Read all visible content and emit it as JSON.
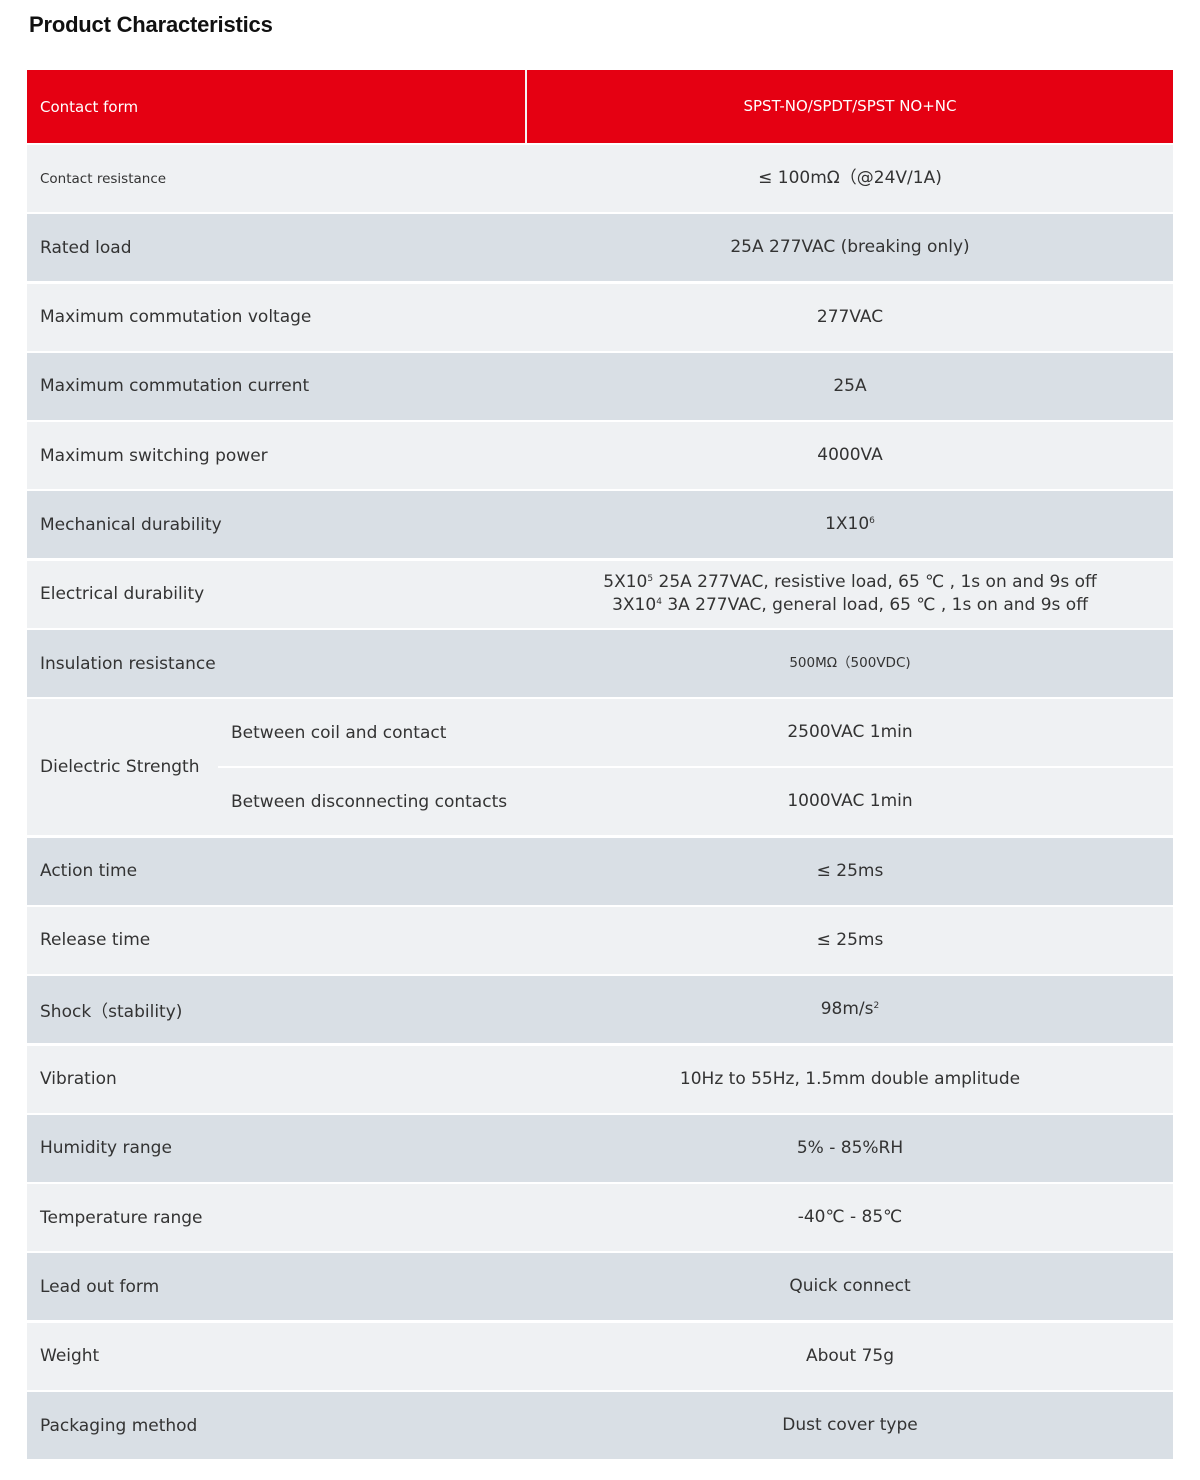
{
  "title": "Product Characteristics",
  "colors": {
    "header_bg": "#e50012",
    "row_light": "#eff1f3",
    "row_dark": "#d9dfe5"
  },
  "header": {
    "label": "Contact form",
    "value": "SPST-NO/SPDT/SPST NO+NC"
  },
  "rows": [
    {
      "label": "Contact resistance",
      "value": [
        {
          "t": "≤ 100mΩ（@24V/1A)"
        }
      ],
      "small_label": true
    },
    {
      "label": "Rated load",
      "value": [
        {
          "t": "25A 277VAC (breaking only)"
        }
      ]
    },
    {
      "label": "Maximum commutation voltage",
      "value": [
        {
          "t": "277VAC"
        }
      ]
    },
    {
      "label": "Maximum commutation current",
      "value": [
        {
          "t": "25A"
        }
      ]
    },
    {
      "label": "Maximum switching power",
      "value": [
        {
          "t": "4000VA"
        }
      ]
    },
    {
      "label": "Mechanical durability",
      "value": [
        {
          "t": "1X10"
        },
        {
          "sup": "6"
        }
      ]
    },
    {
      "label": "Electrical durability",
      "value": [
        {
          "t": "5X10"
        },
        {
          "sup": "5"
        },
        {
          "t": " 25A 277VAC, resistive load, 65 ℃ , 1s on and 9s off"
        },
        {
          "br": true
        },
        {
          "t": "3X10"
        },
        {
          "sup": "4"
        },
        {
          "t": " 3A 277VAC, general load, 65 ℃ , 1s on and 9s off"
        }
      ]
    },
    {
      "label": "Insulation resistance",
      "value": [
        {
          "t": "500MΩ（500VDC)"
        }
      ],
      "small_value": true
    },
    {
      "label": "Dielectric Strength",
      "subs": [
        {
          "label": "Between coil and contact",
          "value": "2500VAC 1min"
        },
        {
          "label": "Between disconnecting contacts",
          "value": "1000VAC 1min"
        }
      ]
    },
    {
      "label": "Action time",
      "value": [
        {
          "t": "≤ 25ms"
        }
      ]
    },
    {
      "label": "Release time",
      "value": [
        {
          "t": "≤ 25ms"
        }
      ]
    },
    {
      "label": "Shock（stability)",
      "value": [
        {
          "t": "98m/s"
        },
        {
          "sup": "2"
        }
      ]
    },
    {
      "label": "Vibration",
      "value": [
        {
          "t": "10Hz to 55Hz, 1.5mm double amplitude"
        }
      ]
    },
    {
      "label": "Humidity range",
      "value": [
        {
          "t": "5% - 85%RH"
        }
      ]
    },
    {
      "label": "Temperature range",
      "value": [
        {
          "t": "-40℃ - 85℃"
        }
      ]
    },
    {
      "label": "Lead out form",
      "value": [
        {
          "t": "Quick connect"
        }
      ]
    },
    {
      "label": "Weight",
      "value": [
        {
          "t": "About 75g"
        }
      ]
    },
    {
      "label": "Packaging method",
      "value": [
        {
          "t": "Dust cover type"
        }
      ]
    }
  ]
}
